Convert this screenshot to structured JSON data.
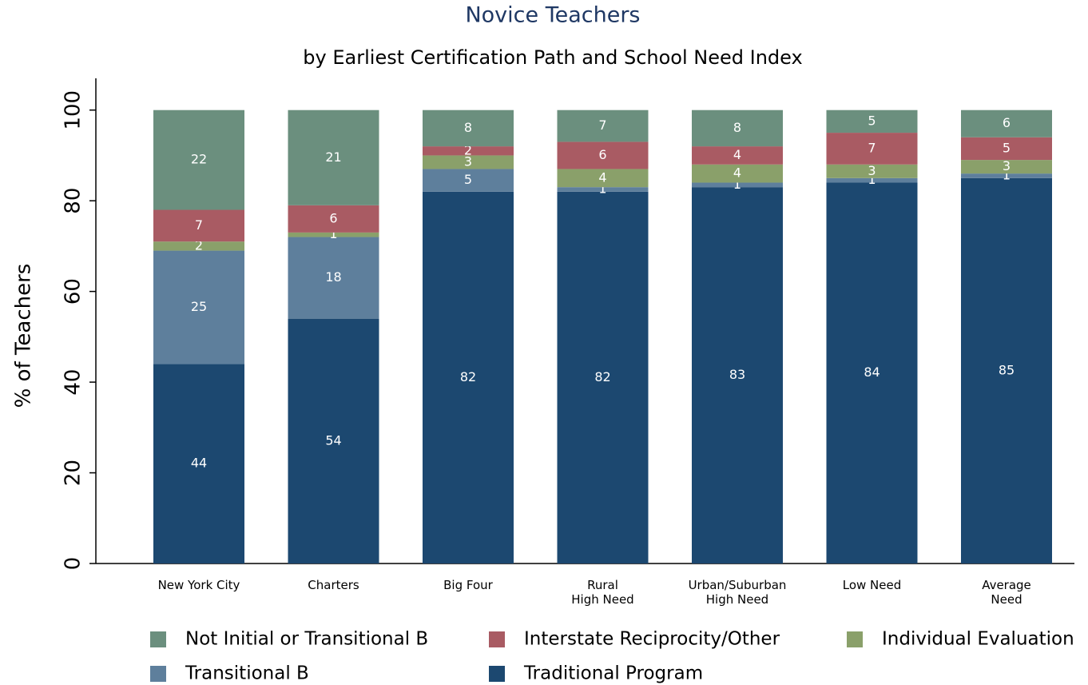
{
  "chart_data": {
    "type": "stacked_bar",
    "title": "Novice Teachers",
    "subtitle": "by Earliest Certification Path and School Need Index",
    "y_label": "% of Teachers",
    "categories": [
      "New York City",
      "Charters",
      "Big Four",
      "Rural\nHigh Need",
      "Urban/Suburban\nHigh Need",
      "Low Need",
      "Average\nNeed"
    ],
    "series": [
      {
        "name": "Not Initial or Transitional B",
        "color": "#6b8f7e",
        "values": [
          22,
          21,
          8,
          7,
          8,
          5,
          6
        ]
      },
      {
        "name": "Interstate Reciprocity/Other",
        "color": "#a95b63",
        "values": [
          7,
          6,
          2,
          6,
          4,
          7,
          5
        ]
      },
      {
        "name": "Individual Evaluation",
        "color": "#8aa06a",
        "values": [
          2,
          1,
          3,
          4,
          4,
          3,
          3
        ]
      },
      {
        "name": "Transitional B",
        "color": "#5e7f9c",
        "values": [
          25,
          18,
          5,
          1,
          1,
          1,
          1
        ]
      },
      {
        "name": "Traditional Program",
        "color": "#1c4870",
        "values": [
          44,
          54,
          82,
          82,
          83,
          84,
          85
        ]
      }
    ],
    "ylim": [
      0,
      107
    ],
    "yticks": [
      0,
      20,
      40,
      60,
      80,
      100
    ],
    "grid": false,
    "legend": "bottom"
  }
}
